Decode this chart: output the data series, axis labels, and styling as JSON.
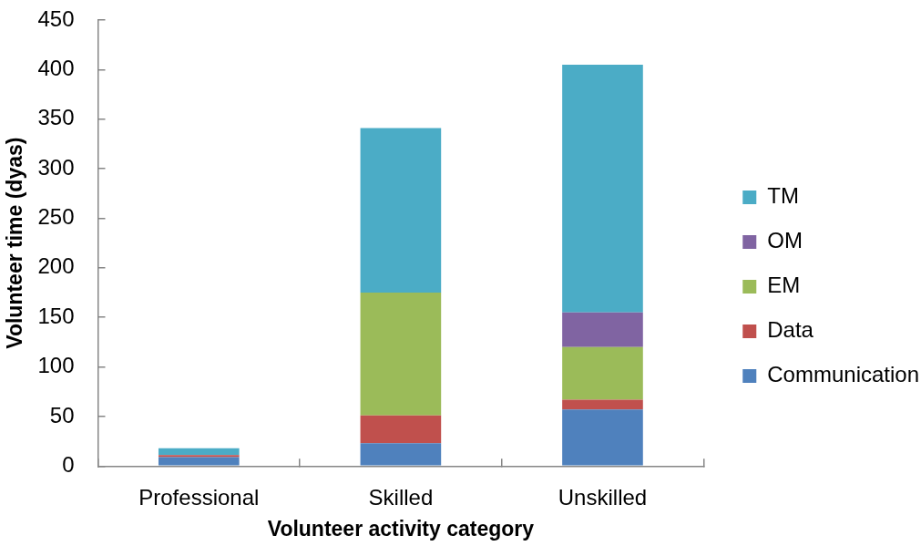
{
  "chart_data": {
    "type": "bar",
    "stacked": true,
    "xlabel": "Volunteer activity category",
    "ylabel": "Volunteer time (dyas)",
    "categories": [
      "Professional",
      "Skilled",
      "Unskilled"
    ],
    "series": [
      {
        "name": "Communication",
        "color": "#4f81bd",
        "values": [
          9,
          23,
          57
        ]
      },
      {
        "name": "Data",
        "color": "#c0504d",
        "values": [
          2,
          28,
          10
        ]
      },
      {
        "name": "EM",
        "color": "#9bbb59",
        "values": [
          0,
          124,
          53
        ]
      },
      {
        "name": "OM",
        "color": "#8064a2",
        "values": [
          0,
          0,
          35
        ]
      },
      {
        "name": "TM",
        "color": "#4bacc6",
        "values": [
          7,
          166,
          250
        ]
      }
    ],
    "ylim": [
      0,
      450
    ],
    "yticks": [
      0,
      50,
      100,
      150,
      200,
      250,
      300,
      350,
      400,
      450
    ],
    "grid": false,
    "legend": "right"
  }
}
